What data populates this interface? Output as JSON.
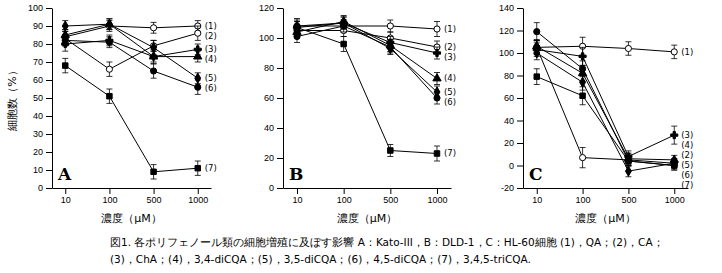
{
  "chart_data": [
    {
      "type": "line",
      "title": "A",
      "x_label": "濃度（μM）",
      "y_label": "細胞数（%）",
      "categories": [
        "10",
        "100",
        "500",
        "1000"
      ],
      "ylim": [
        0,
        100
      ],
      "yticks": [
        0,
        10,
        20,
        30,
        40,
        50,
        60,
        70,
        80,
        90,
        100
      ],
      "series": [
        {
          "name": "(1)",
          "color": "#000000",
          "marker": "circle-open",
          "values": [
            84,
            90,
            89,
            90
          ],
          "errors": [
            4,
            3,
            3,
            3
          ]
        },
        {
          "name": "(2)",
          "color": "#000000",
          "marker": "circle-open",
          "values": [
            83,
            66,
            79,
            86
          ],
          "errors": [
            4,
            4,
            3,
            4
          ]
        },
        {
          "name": "(3)",
          "color": "#000000",
          "marker": "cross",
          "values": [
            80,
            82,
            73,
            77
          ],
          "errors": [
            4,
            3,
            4,
            3
          ]
        },
        {
          "name": "(4)",
          "color": "#000000",
          "marker": "triangle",
          "values": [
            85,
            91,
            73,
            73
          ],
          "errors": [
            3,
            3,
            3,
            3
          ]
        },
        {
          "name": "(5)",
          "color": "#000000",
          "marker": "diamond",
          "values": [
            90,
            91,
            78,
            61
          ],
          "errors": [
            3,
            3,
            4,
            3
          ]
        },
        {
          "name": "(6)",
          "color": "#000000",
          "marker": "circle",
          "values": [
            82,
            81,
            65,
            56
          ],
          "errors": [
            3,
            3,
            4,
            4
          ]
        },
        {
          "name": "(7)",
          "color": "#000000",
          "marker": "square",
          "values": [
            68,
            51,
            9,
            11
          ],
          "errors": [
            4,
            4,
            4,
            4
          ]
        }
      ]
    },
    {
      "type": "line",
      "title": "B",
      "x_label": "濃度（μM）",
      "categories": [
        "10",
        "100",
        "500",
        "1000"
      ],
      "ylim": [
        0,
        120
      ],
      "yticks": [
        0,
        20,
        40,
        60,
        80,
        100,
        120
      ],
      "series": [
        {
          "name": "(1)",
          "color": "#000000",
          "marker": "circle-open",
          "values": [
            108,
            108,
            108,
            106
          ],
          "errors": [
            5,
            4,
            4,
            5
          ]
        },
        {
          "name": "(2)",
          "color": "#000000",
          "marker": "circle-open",
          "values": [
            105,
            105,
            100,
            94
          ],
          "errors": [
            4,
            4,
            4,
            4
          ]
        },
        {
          "name": "(3)",
          "color": "#000000",
          "marker": "cross",
          "values": [
            107,
            110,
            97,
            90
          ],
          "errors": [
            4,
            4,
            4,
            4
          ]
        },
        {
          "name": "(4)",
          "color": "#000000",
          "marker": "triangle",
          "values": [
            104,
            111,
            95,
            73
          ],
          "errors": [
            4,
            4,
            4,
            4
          ]
        },
        {
          "name": "(5)",
          "color": "#000000",
          "marker": "diamond",
          "values": [
            108,
            110,
            93,
            64
          ],
          "errors": [
            4,
            4,
            4,
            4
          ]
        },
        {
          "name": "(6)",
          "color": "#000000",
          "marker": "circle",
          "values": [
            101,
            108,
            94,
            60
          ],
          "errors": [
            4,
            4,
            4,
            4
          ]
        },
        {
          "name": "(7)",
          "color": "#000000",
          "marker": "square",
          "values": [
            107,
            96,
            25,
            23
          ],
          "errors": [
            4,
            5,
            4,
            5
          ]
        }
      ]
    },
    {
      "type": "line",
      "title": "C",
      "x_label": "濃度（μM）",
      "categories": [
        "10",
        "100",
        "500",
        "1000"
      ],
      "ylim": [
        -20,
        140
      ],
      "yticks": [
        -20,
        0,
        20,
        40,
        60,
        80,
        100,
        120,
        140
      ],
      "series": [
        {
          "name": "(1)",
          "color": "#000000",
          "marker": "circle-open",
          "values": [
            105,
            106,
            104,
            101
          ],
          "errors": [
            6,
            8,
            6,
            6
          ]
        },
        {
          "name": "(2)",
          "color": "#000000",
          "marker": "circle-open",
          "values": [
            105,
            7,
            5,
            2
          ],
          "errors": [
            6,
            9,
            5,
            4
          ]
        },
        {
          "name": "(3)",
          "color": "#000000",
          "marker": "cross",
          "values": [
            103,
            97,
            8,
            27
          ],
          "errors": [
            6,
            8,
            5,
            8
          ]
        },
        {
          "name": "(4)",
          "color": "#000000",
          "marker": "triangle",
          "values": [
            106,
            82,
            6,
            5
          ],
          "errors": [
            6,
            7,
            5,
            4
          ]
        },
        {
          "name": "(5)",
          "color": "#000000",
          "marker": "diamond",
          "values": [
            100,
            74,
            -5,
            2
          ],
          "errors": [
            6,
            7,
            5,
            4
          ]
        },
        {
          "name": "(6)",
          "color": "#000000",
          "marker": "circle",
          "values": [
            119,
            86,
            4,
            0
          ],
          "errors": [
            8,
            7,
            5,
            4
          ]
        },
        {
          "name": "(7)",
          "color": "#000000",
          "marker": "square",
          "values": [
            79,
            62,
            4,
            0
          ],
          "errors": [
            7,
            8,
            4,
            4
          ]
        }
      ]
    }
  ],
  "caption": [
    "図1. 各ポリフェノール類の細胞増殖に及ぼす影響 A：Kato-III，B：DLD-1，C：HL-60細胞 (1)，QA；(2)，CA；",
    "(3)，ChA；(4)，3,4-diCQA；(5)，3,5-diCQA；(6)，4,5-diCQA；(7)，3,4,5-triCQA."
  ]
}
